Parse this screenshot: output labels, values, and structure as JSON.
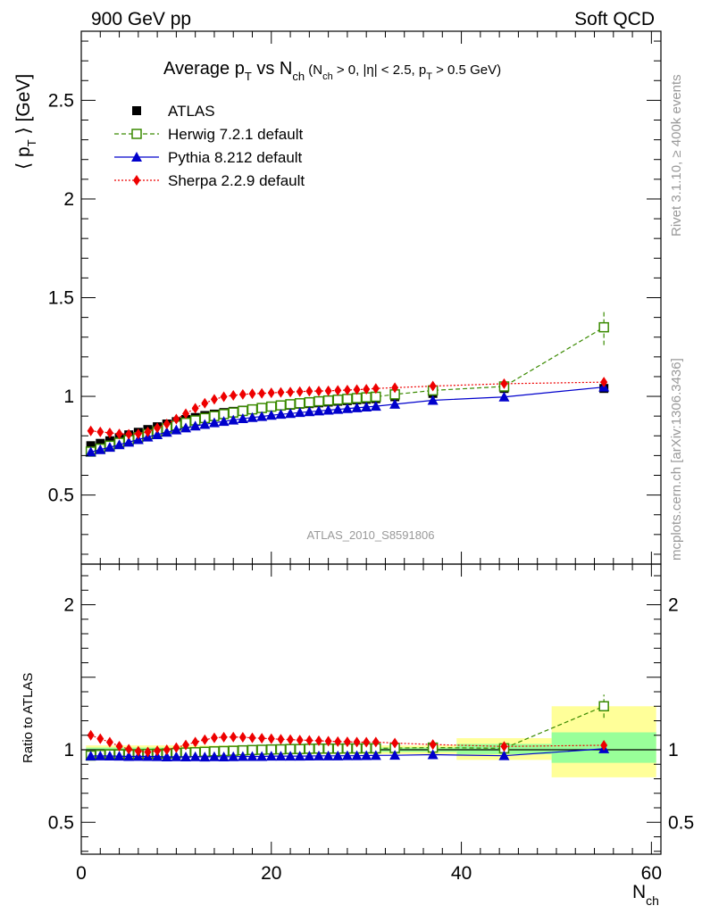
{
  "header": {
    "left": "900 GeV pp",
    "right": "Soft QCD"
  },
  "side_labels": {
    "rivet": "Rivet 3.1.10, ≥ 400k events",
    "mcplots": "mcplots.cern.ch [arXiv:1306.3436]"
  },
  "watermark": "ATLAS_2010_S8591806",
  "colors": {
    "atlas": "#000000",
    "herwig": "#3a8a00",
    "pythia": "#0000cc",
    "sherpa": "#ee0000",
    "band_yellow": "#ffff99",
    "band_green": "#99ff99"
  },
  "chart_data": [
    {
      "type": "scatter",
      "title": {
        "main": "Average p",
        "sub1": "T",
        "mid": " vs N",
        "sub2": "ch",
        "cond": " (N",
        "sub3": "ch",
        "cond2": " > 0, |η| < 2.5, p",
        "sub4": "T",
        "cond3": " > 0.5 GeV)"
      },
      "ylabel": {
        "a": "⟨ p",
        "sub": "T",
        "b": " ⟩ [GeV]"
      },
      "xlim": [
        0,
        61
      ],
      "ylim": [
        0.15,
        2.85
      ],
      "yticks": [
        "0.5",
        "1",
        "1.5",
        "2",
        "2.5"
      ],
      "ytick_values": [
        0.5,
        1,
        1.5,
        2,
        2.5
      ],
      "series": [
        {
          "name": "ATLAS",
          "x": [
            1,
            2,
            3,
            4,
            5,
            6,
            7,
            8,
            9,
            10,
            11,
            12,
            13,
            14,
            15,
            16,
            17,
            18,
            19,
            20,
            21,
            22,
            23,
            24,
            25,
            26,
            27,
            28,
            29,
            30,
            31,
            33,
            37,
            44.5,
            55
          ],
          "y": [
            0.75,
            0.762,
            0.775,
            0.79,
            0.805,
            0.818,
            0.832,
            0.846,
            0.86,
            0.872,
            0.883,
            0.893,
            0.903,
            0.91,
            0.918,
            0.924,
            0.93,
            0.936,
            0.941,
            0.946,
            0.951,
            0.955,
            0.96,
            0.963,
            0.967,
            0.971,
            0.975,
            0.978,
            0.982,
            0.985,
            0.988,
            0.998,
            1.015,
            1.04,
            1.04
          ]
        },
        {
          "name": "Herwig 7.2.1 default",
          "x": [
            1,
            2,
            3,
            4,
            5,
            6,
            7,
            8,
            9,
            10,
            11,
            12,
            13,
            14,
            15,
            16,
            17,
            18,
            19,
            20,
            21,
            22,
            23,
            24,
            25,
            26,
            27,
            28,
            29,
            30,
            31,
            33,
            37,
            44.5,
            55
          ],
          "y": [
            0.72,
            0.735,
            0.75,
            0.765,
            0.778,
            0.793,
            0.808,
            0.822,
            0.838,
            0.852,
            0.866,
            0.878,
            0.89,
            0.9,
            0.91,
            0.918,
            0.926,
            0.934,
            0.941,
            0.948,
            0.954,
            0.96,
            0.965,
            0.97,
            0.975,
            0.979,
            0.983,
            0.987,
            0.991,
            0.995,
            0.998,
            1.01,
            1.03,
            1.05,
            1.35
          ],
          "yerr_last": 0.09
        },
        {
          "name": "Pythia 8.212 default",
          "x": [
            1,
            2,
            3,
            4,
            5,
            6,
            7,
            8,
            9,
            10,
            11,
            12,
            13,
            14,
            15,
            16,
            17,
            18,
            19,
            20,
            21,
            22,
            23,
            24,
            25,
            26,
            27,
            28,
            29,
            30,
            31,
            33,
            37,
            44.5,
            55
          ],
          "y": [
            0.718,
            0.73,
            0.742,
            0.755,
            0.768,
            0.781,
            0.794,
            0.806,
            0.818,
            0.83,
            0.84,
            0.85,
            0.858,
            0.866,
            0.873,
            0.88,
            0.887,
            0.893,
            0.898,
            0.904,
            0.909,
            0.913,
            0.918,
            0.922,
            0.926,
            0.93,
            0.934,
            0.938,
            0.942,
            0.946,
            0.95,
            0.96,
            0.98,
            0.997,
            1.047
          ]
        },
        {
          "name": "Sherpa 2.2.9 default",
          "x": [
            1,
            2,
            3,
            4,
            5,
            6,
            7,
            8,
            9,
            10,
            11,
            12,
            13,
            14,
            15,
            16,
            17,
            18,
            19,
            20,
            21,
            22,
            23,
            24,
            25,
            26,
            27,
            28,
            29,
            30,
            31,
            33,
            37,
            44.5,
            55
          ],
          "y": [
            0.825,
            0.82,
            0.815,
            0.81,
            0.808,
            0.81,
            0.82,
            0.84,
            0.86,
            0.885,
            0.912,
            0.94,
            0.965,
            0.985,
            0.998,
            1.005,
            1.01,
            1.013,
            1.015,
            1.018,
            1.02,
            1.022,
            1.024,
            1.026,
            1.027,
            1.028,
            1.03,
            1.032,
            1.034,
            1.036,
            1.04,
            1.044,
            1.052,
            1.064,
            1.072
          ]
        }
      ]
    },
    {
      "type": "scatter",
      "ylabel": "Ratio to ATLAS",
      "xlabel": {
        "a": "N",
        "sub": "ch"
      },
      "xlim": [
        0,
        61
      ],
      "ylim": [
        0.28,
        2.28
      ],
      "xticks": [
        "0",
        "20",
        "40",
        "60"
      ],
      "xtick_values": [
        0,
        20,
        40,
        60
      ],
      "yticks": [
        "0.5",
        "1",
        "2"
      ],
      "ytick_values": [
        0.5,
        1,
        2
      ],
      "bands": [
        {
          "x0": 39.5,
          "x1": 49.5,
          "yellow": [
            0.93,
            1.08
          ],
          "green": [
            0.97,
            1.04
          ]
        },
        {
          "x0": 49.5,
          "x1": 60.5,
          "yellow": [
            0.81,
            1.3
          ],
          "green": [
            0.91,
            1.12
          ]
        }
      ],
      "series": [
        {
          "name": "Herwig 7.2.1 default",
          "x": [
            1,
            2,
            3,
            4,
            5,
            6,
            7,
            8,
            9,
            10,
            11,
            12,
            13,
            14,
            15,
            16,
            17,
            18,
            19,
            20,
            21,
            22,
            23,
            24,
            25,
            26,
            27,
            28,
            29,
            30,
            31,
            33,
            37,
            44.5,
            55
          ],
          "y": [
            0.96,
            0.965,
            0.968,
            0.968,
            0.966,
            0.969,
            0.971,
            0.972,
            0.974,
            0.977,
            0.981,
            0.983,
            0.986,
            0.989,
            0.991,
            0.993,
            0.996,
            0.998,
            1.0,
            1.002,
            1.003,
            1.005,
            1.005,
            1.007,
            1.008,
            1.008,
            1.008,
            1.009,
            1.009,
            1.01,
            1.01,
            1.012,
            1.015,
            1.01,
            1.3
          ],
          "yerr_last": 0.08
        },
        {
          "name": "Pythia 8.212 default",
          "x": [
            1,
            2,
            3,
            4,
            5,
            6,
            7,
            8,
            9,
            10,
            11,
            12,
            13,
            14,
            15,
            16,
            17,
            18,
            19,
            20,
            21,
            22,
            23,
            24,
            25,
            26,
            27,
            28,
            29,
            30,
            31,
            33,
            37,
            44.5,
            55
          ],
          "y": [
            0.957,
            0.958,
            0.957,
            0.956,
            0.954,
            0.955,
            0.954,
            0.953,
            0.951,
            0.952,
            0.951,
            0.952,
            0.95,
            0.952,
            0.951,
            0.952,
            0.954,
            0.954,
            0.954,
            0.956,
            0.956,
            0.956,
            0.956,
            0.957,
            0.958,
            0.958,
            0.958,
            0.959,
            0.959,
            0.96,
            0.961,
            0.962,
            0.966,
            0.959,
            1.007
          ]
        },
        {
          "name": "Sherpa 2.2.9 default",
          "x": [
            1,
            2,
            3,
            4,
            5,
            6,
            7,
            8,
            9,
            10,
            11,
            12,
            13,
            14,
            15,
            16,
            17,
            18,
            19,
            20,
            21,
            22,
            23,
            24,
            25,
            26,
            27,
            28,
            29,
            30,
            31,
            33,
            37,
            44.5,
            55
          ],
          "y": [
            1.1,
            1.076,
            1.052,
            1.025,
            1.004,
            0.99,
            0.985,
            0.993,
            1.0,
            1.015,
            1.033,
            1.053,
            1.069,
            1.082,
            1.087,
            1.088,
            1.086,
            1.082,
            1.079,
            1.076,
            1.072,
            1.07,
            1.067,
            1.065,
            1.062,
            1.059,
            1.056,
            1.055,
            1.053,
            1.052,
            1.053,
            1.046,
            1.036,
            1.023,
            1.031
          ]
        }
      ]
    }
  ]
}
